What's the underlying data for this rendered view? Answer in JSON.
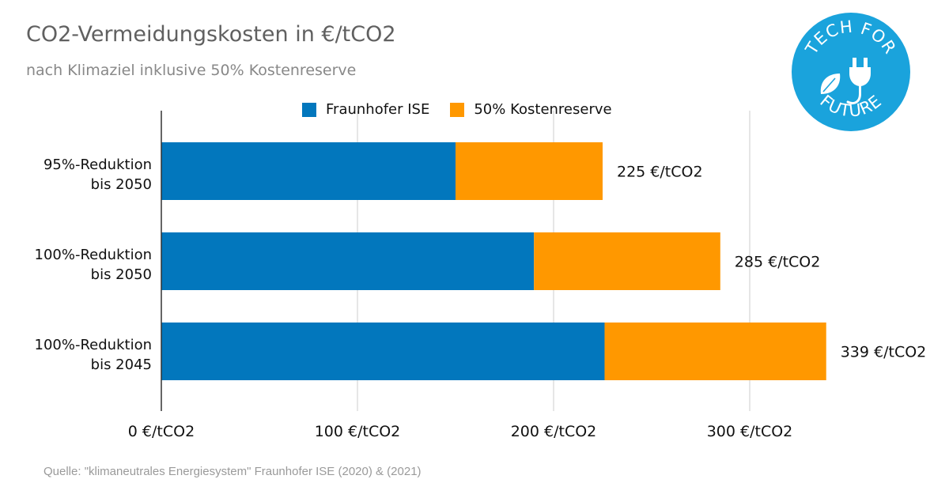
{
  "header": {
    "title": "CO2-Vermeidungskosten in €/tCO2",
    "subtitle": "nach Klimaziel inklusive 50% Kostenreserve"
  },
  "footer": {
    "source": "Quelle: \"klimaneutrales Energiesystem\" Fraunhofer ISE (2020) & (2021)"
  },
  "logo": {
    "text_top": "TECH FOR",
    "text_bottom": "FUTURE",
    "color": "#1aa3dc"
  },
  "colors": {
    "fraunhofer": "#0277bd",
    "reserve": "#ff9800",
    "grid": "#cccccc",
    "axis": "#333333"
  },
  "chart_data": {
    "type": "bar",
    "orientation": "horizontal",
    "stacked": true,
    "categories": [
      [
        "95%-Reduktion",
        "bis 2050"
      ],
      [
        "100%-Reduktion",
        "bis 2050"
      ],
      [
        "100%-Reduktion",
        "bis 2045"
      ]
    ],
    "series": [
      {
        "name": "Fraunhofer ISE",
        "values": [
          150,
          190,
          226
        ]
      },
      {
        "name": "50% Kostenreserve",
        "values": [
          75,
          95,
          113
        ]
      }
    ],
    "data_labels": [
      "225 €/tCO2",
      "285 €/tCO2",
      "339 €/tCO2"
    ],
    "x_ticks": [
      0,
      100,
      200,
      300
    ],
    "x_tick_labels": [
      "0 €/tCO2",
      "100 €/tCO2",
      "200 €/tCO2",
      "300 €/tCO2"
    ],
    "xlim": [
      0,
      340
    ],
    "grid": true,
    "legend_position": "top"
  }
}
